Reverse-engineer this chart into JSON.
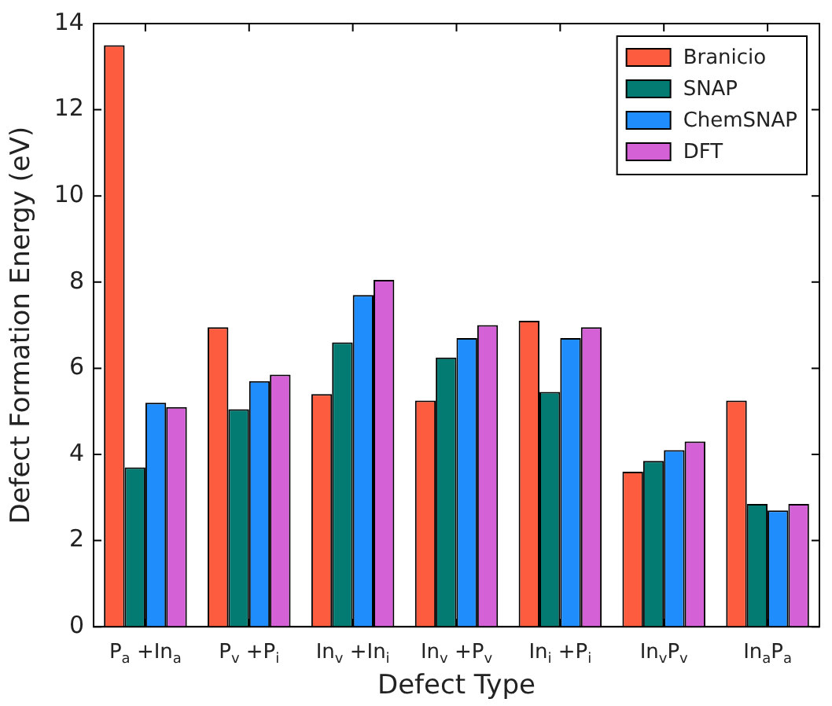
{
  "chart_data": {
    "type": "bar",
    "xlabel": "Defect Type",
    "ylabel": "Defect Formation Energy (eV)",
    "categories": [
      "P$_{a}$ +In$_{a}$",
      "P$_{v}$ +P$_{i}$",
      "In$_{v}$ +In$_{i}$",
      "In$_{v}$ +P$_{v}$",
      "In$_{i}$ +P$_{i}$",
      "In$_{v}$P$_{v}$",
      "In$_{a}$P$_{a}$"
    ],
    "series": [
      {
        "name": "Branicio",
        "color": "#fd5c3f",
        "values": [
          13.5,
          6.95,
          5.4,
          5.25,
          7.1,
          3.6,
          5.25
        ]
      },
      {
        "name": "SNAP",
        "color": "#047b72",
        "values": [
          3.7,
          5.05,
          6.6,
          6.25,
          5.45,
          3.85,
          2.85
        ]
      },
      {
        "name": "ChemSNAP",
        "color": "#1f8efc",
        "values": [
          5.2,
          5.7,
          7.7,
          6.7,
          6.7,
          4.1,
          2.7
        ]
      },
      {
        "name": "DFT",
        "color": "#d462d6",
        "values": [
          5.1,
          5.85,
          8.05,
          7.0,
          6.95,
          4.3,
          2.85
        ]
      }
    ],
    "ylim": [
      0,
      14
    ],
    "yticks": [
      0,
      2,
      4,
      6,
      8,
      10,
      12,
      14
    ],
    "grid": false,
    "legend": "top right"
  }
}
